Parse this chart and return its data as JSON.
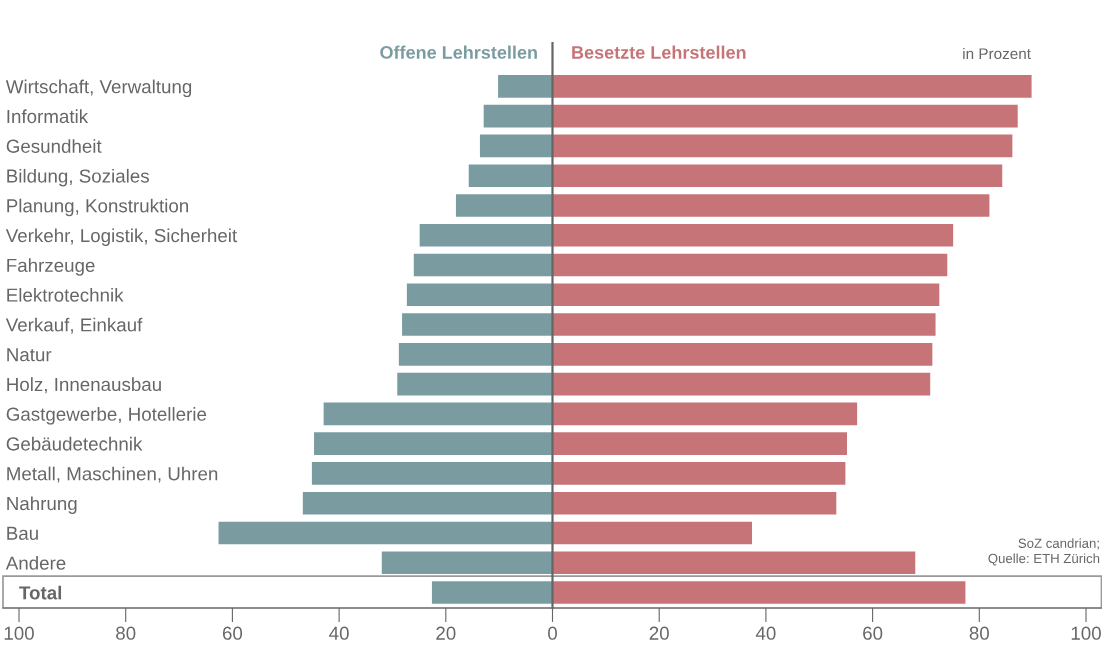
{
  "chart_data": {
    "type": "bar",
    "orientation": "horizontal",
    "stacked": true,
    "categories": [
      "Wirtschaft, Verwaltung",
      "Informatik",
      "Gesundheit",
      "Bildung, Soziales",
      "Planung, Konstruktion",
      "Verkehr, Logistik, Sicherheit",
      "Fahrzeuge",
      "Elektrotechnik",
      "Verkauf, Einkauf",
      "Natur",
      "Holz, Innenausbau",
      "Gastgewerbe, Hotellerie",
      "Gebäudetechnik",
      "Metall, Maschinen, Uhren",
      "Nahrung",
      "Bau",
      "Andere",
      "Total"
    ],
    "series": [
      {
        "name": "Offene Lehrstellen",
        "color": "#7a9ca1",
        "values": [
          -10.2,
          -12.9,
          -13.6,
          -15.7,
          -18.1,
          -24.9,
          -26.0,
          -27.3,
          -28.2,
          -28.8,
          -29.1,
          -42.9,
          -44.7,
          -45.1,
          -46.8,
          -62.6,
          -32.0,
          -22.6
        ]
      },
      {
        "name": "Besetzte Lehrstellen",
        "color": "#c67478",
        "values": [
          89.8,
          87.2,
          86.2,
          84.3,
          81.9,
          75.1,
          74.0,
          72.5,
          71.8,
          71.2,
          70.8,
          57.1,
          55.2,
          54.9,
          53.2,
          37.4,
          68.0,
          77.4
        ]
      }
    ],
    "xlim": [
      -103,
      103
    ],
    "xticks": [
      {
        "value": -100,
        "label": "100"
      },
      {
        "value": -80,
        "label": "80"
      },
      {
        "value": -60,
        "label": "60"
      },
      {
        "value": -40,
        "label": "40"
      },
      {
        "value": -20,
        "label": "20"
      },
      0,
      20,
      40,
      60,
      80,
      100
    ],
    "ref_lines": [
      {
        "axis": "x",
        "value": 0,
        "color": "#666666"
      }
    ],
    "annotations": [
      "in Prozent",
      "SoZ candrian;\nQuelle: ETH Zürich"
    ],
    "grid": false,
    "legend": false
  }
}
